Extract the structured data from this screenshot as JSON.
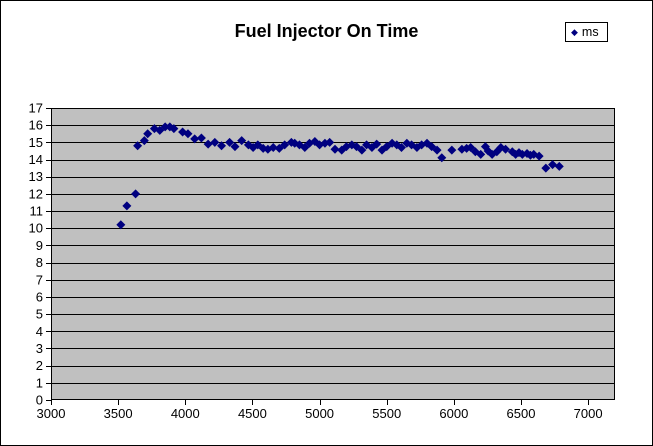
{
  "title": "Fuel Injector On Time",
  "legend": {
    "label": "ms",
    "marker": "diamond",
    "marker_color": "#000080"
  },
  "colors": {
    "chart_bg": "#FFFFFF",
    "plot_bg": "#C0C0C0",
    "grid": "#000000",
    "axis": "#000000",
    "marker": "#000080",
    "text": "#000000",
    "border": "#000000"
  },
  "chart_data": {
    "type": "scatter",
    "title": "Fuel Injector On Time",
    "xlabel": "",
    "ylabel": "",
    "xlim": [
      3000,
      7200
    ],
    "ylim": [
      0,
      17
    ],
    "x_ticks": [
      3000,
      3500,
      4000,
      4500,
      5000,
      5500,
      6000,
      6500,
      7000
    ],
    "y_ticks": [
      0,
      1,
      2,
      3,
      4,
      5,
      6,
      7,
      8,
      9,
      10,
      11,
      12,
      13,
      14,
      15,
      16,
      17
    ],
    "grid": "horizontal",
    "legend_position": "top-right",
    "series": [
      {
        "name": "ms",
        "color": "#000080",
        "marker": "diamond",
        "points": [
          [
            3520,
            10.2
          ],
          [
            3565,
            11.3
          ],
          [
            3630,
            12.0
          ],
          [
            3645,
            14.8
          ],
          [
            3695,
            15.1
          ],
          [
            3720,
            15.5
          ],
          [
            3770,
            15.8
          ],
          [
            3810,
            15.7
          ],
          [
            3850,
            15.9
          ],
          [
            3885,
            15.9
          ],
          [
            3915,
            15.8
          ],
          [
            3980,
            15.6
          ],
          [
            4020,
            15.5
          ],
          [
            4070,
            15.2
          ],
          [
            4120,
            15.25
          ],
          [
            4170,
            14.9
          ],
          [
            4220,
            15.0
          ],
          [
            4270,
            14.8
          ],
          [
            4330,
            15.0
          ],
          [
            4370,
            14.75
          ],
          [
            4420,
            15.1
          ],
          [
            4470,
            14.85
          ],
          [
            4505,
            14.7
          ],
          [
            4540,
            14.85
          ],
          [
            4580,
            14.65
          ],
          [
            4615,
            14.6
          ],
          [
            4655,
            14.7
          ],
          [
            4700,
            14.65
          ],
          [
            4740,
            14.85
          ],
          [
            4790,
            15.0
          ],
          [
            4815,
            14.95
          ],
          [
            4850,
            14.85
          ],
          [
            4890,
            14.7
          ],
          [
            4925,
            14.95
          ],
          [
            4965,
            15.05
          ],
          [
            5000,
            14.85
          ],
          [
            5040,
            14.95
          ],
          [
            5075,
            15.0
          ],
          [
            5115,
            14.6
          ],
          [
            5165,
            14.55
          ],
          [
            5200,
            14.75
          ],
          [
            5240,
            14.85
          ],
          [
            5275,
            14.75
          ],
          [
            5315,
            14.55
          ],
          [
            5350,
            14.85
          ],
          [
            5390,
            14.7
          ],
          [
            5425,
            14.9
          ],
          [
            5465,
            14.55
          ],
          [
            5500,
            14.75
          ],
          [
            5540,
            14.95
          ],
          [
            5575,
            14.85
          ],
          [
            5610,
            14.7
          ],
          [
            5650,
            14.95
          ],
          [
            5685,
            14.85
          ],
          [
            5725,
            14.7
          ],
          [
            5760,
            14.85
          ],
          [
            5800,
            14.95
          ],
          [
            5835,
            14.75
          ],
          [
            5875,
            14.55
          ],
          [
            5910,
            14.1
          ],
          [
            5985,
            14.55
          ],
          [
            6060,
            14.6
          ],
          [
            6095,
            14.65
          ],
          [
            6125,
            14.7
          ],
          [
            6160,
            14.45
          ],
          [
            6200,
            14.3
          ],
          [
            6235,
            14.75
          ],
          [
            6255,
            14.5
          ],
          [
            6285,
            14.3
          ],
          [
            6320,
            14.45
          ],
          [
            6350,
            14.7
          ],
          [
            6385,
            14.6
          ],
          [
            6435,
            14.45
          ],
          [
            6460,
            14.3
          ],
          [
            6485,
            14.4
          ],
          [
            6510,
            14.3
          ],
          [
            6545,
            14.35
          ],
          [
            6570,
            14.25
          ],
          [
            6595,
            14.3
          ],
          [
            6635,
            14.2
          ],
          [
            6685,
            13.5
          ],
          [
            6735,
            13.7
          ],
          [
            6785,
            13.6
          ]
        ]
      }
    ]
  }
}
